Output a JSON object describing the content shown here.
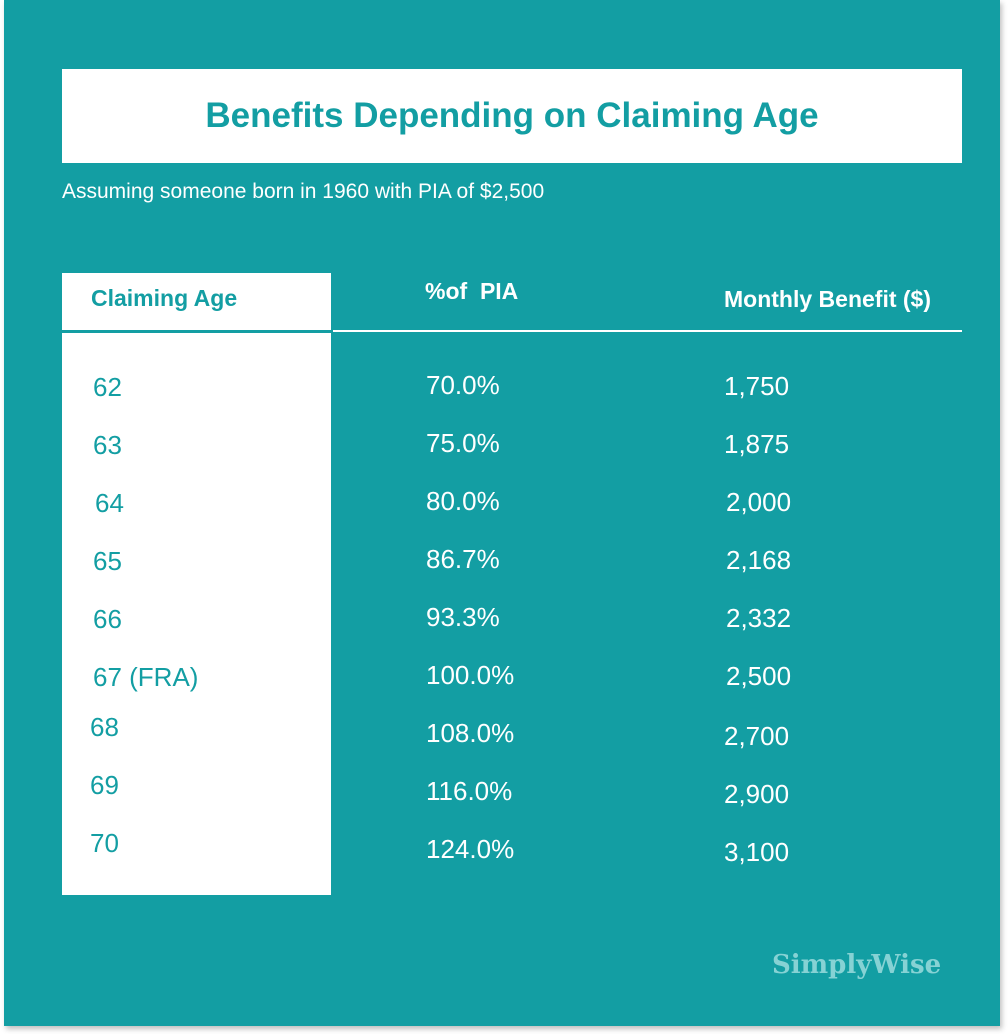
{
  "title": "Benefits Depending on Claiming Age",
  "subtitle": "Assuming someone born in 1960 with PIA of $2,500",
  "logo": "SimplyWise",
  "colors": {
    "background": "#139ea3",
    "panel": "#ffffff",
    "logo": "#86d2d4"
  },
  "chart_data": {
    "type": "table",
    "title": "Benefits Depending on Claiming Age",
    "subtitle": "Assuming someone born in 1960 with PIA of $2,500",
    "columns": [
      "Claiming Age",
      "%of  PIA",
      "Monthly Benefit ($)"
    ],
    "rows": [
      [
        "62",
        "70.0%",
        "1,750"
      ],
      [
        "63",
        "75.0%",
        "1,875"
      ],
      [
        "64",
        "80.0%",
        "2,000"
      ],
      [
        "65",
        "86.7%",
        "2,168"
      ],
      [
        "66",
        "93.3%",
        "2,332"
      ],
      [
        "67 (FRA)",
        "100.0%",
        "2,500"
      ],
      [
        "68",
        "108.0%",
        "2,700"
      ],
      [
        "69",
        "116.0%",
        "2,900"
      ],
      [
        "70",
        "124.0%",
        "3,100"
      ]
    ]
  }
}
